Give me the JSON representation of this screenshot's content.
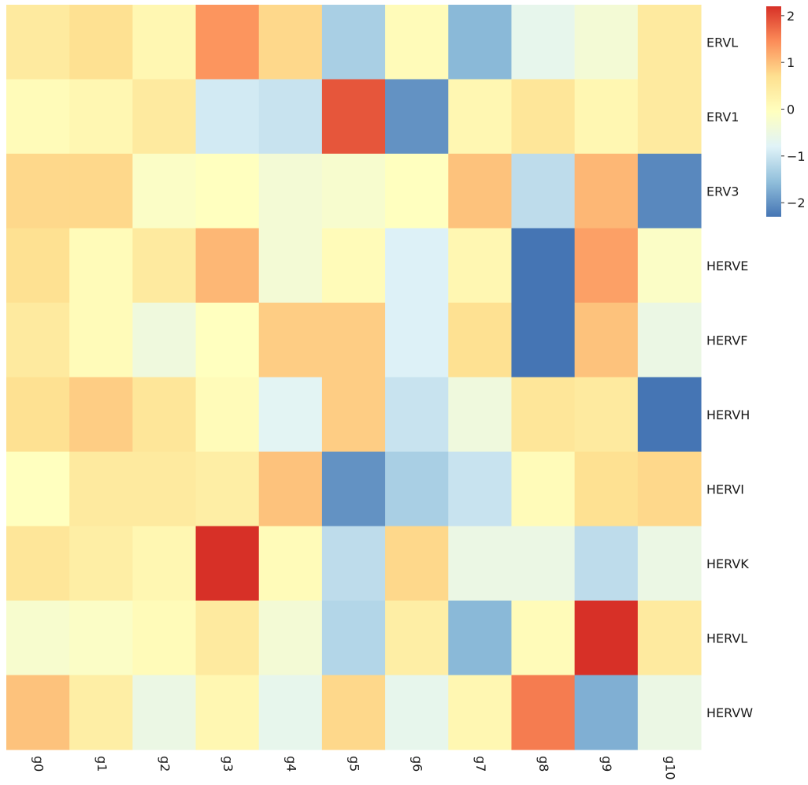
{
  "chart_data": {
    "type": "heatmap",
    "title": "",
    "xlabel": "",
    "ylabel": "",
    "columns": [
      "g0",
      "g1",
      "g2",
      "g3",
      "g4",
      "g5",
      "g6",
      "g7",
      "g8",
      "g9",
      "g10"
    ],
    "rows": [
      "ERVL",
      "ERV1",
      "ERV3",
      "HERVE",
      "HERVF",
      "HERVH",
      "HERVI",
      "HERVK",
      "HERVL",
      "HERVW"
    ],
    "values": [
      [
        0.5,
        0.7,
        0.2,
        1.4,
        0.8,
        -1.3,
        0.1,
        -1.6,
        -0.6,
        -0.3,
        0.5
      ],
      [
        0.1,
        0.2,
        0.5,
        -0.9,
        -1.0,
        1.9,
        -2.0,
        0.2,
        0.6,
        0.2,
        0.5
      ],
      [
        0.8,
        0.8,
        -0.1,
        0.0,
        -0.3,
        -0.2,
        0.0,
        1.0,
        -1.1,
        1.1,
        -2.1
      ],
      [
        0.7,
        0.1,
        0.5,
        1.1,
        -0.3,
        0.1,
        -0.8,
        0.2,
        -2.3,
        1.3,
        -0.1
      ],
      [
        0.5,
        0.1,
        -0.4,
        0.0,
        0.9,
        0.9,
        -0.8,
        0.7,
        -2.3,
        1.0,
        -0.5
      ],
      [
        0.7,
        0.9,
        0.6,
        0.1,
        -0.7,
        0.9,
        -1.0,
        -0.4,
        0.6,
        0.5,
        -2.3
      ],
      [
        0.0,
        0.5,
        0.5,
        0.4,
        1.0,
        -2.0,
        -1.3,
        -1.0,
        0.1,
        0.7,
        0.8
      ],
      [
        0.6,
        0.4,
        0.2,
        2.2,
        0.1,
        -1.1,
        0.8,
        -0.5,
        -0.5,
        -1.1,
        -0.5
      ],
      [
        -0.2,
        -0.1,
        0.1,
        0.5,
        -0.3,
        -1.2,
        0.4,
        -1.6,
        0.1,
        2.2,
        0.5
      ],
      [
        1.0,
        0.4,
        -0.5,
        0.2,
        -0.6,
        0.8,
        -0.6,
        0.2,
        1.6,
        -1.7,
        -0.5
      ]
    ],
    "colorbar": {
      "vmin": -2.3,
      "vmax": 2.2,
      "ticks": [
        2,
        1,
        0,
        -1,
        -2
      ],
      "tick_labels": [
        "2",
        "1",
        "0",
        "−1",
        "−2"
      ],
      "colormap": [
        "#4575b4",
        "#91bfdb",
        "#e0f3f8",
        "#ffffbf",
        "#fee090",
        "#fc8d59",
        "#d73027"
      ]
    },
    "grid": false,
    "legend": "colorbar right"
  }
}
